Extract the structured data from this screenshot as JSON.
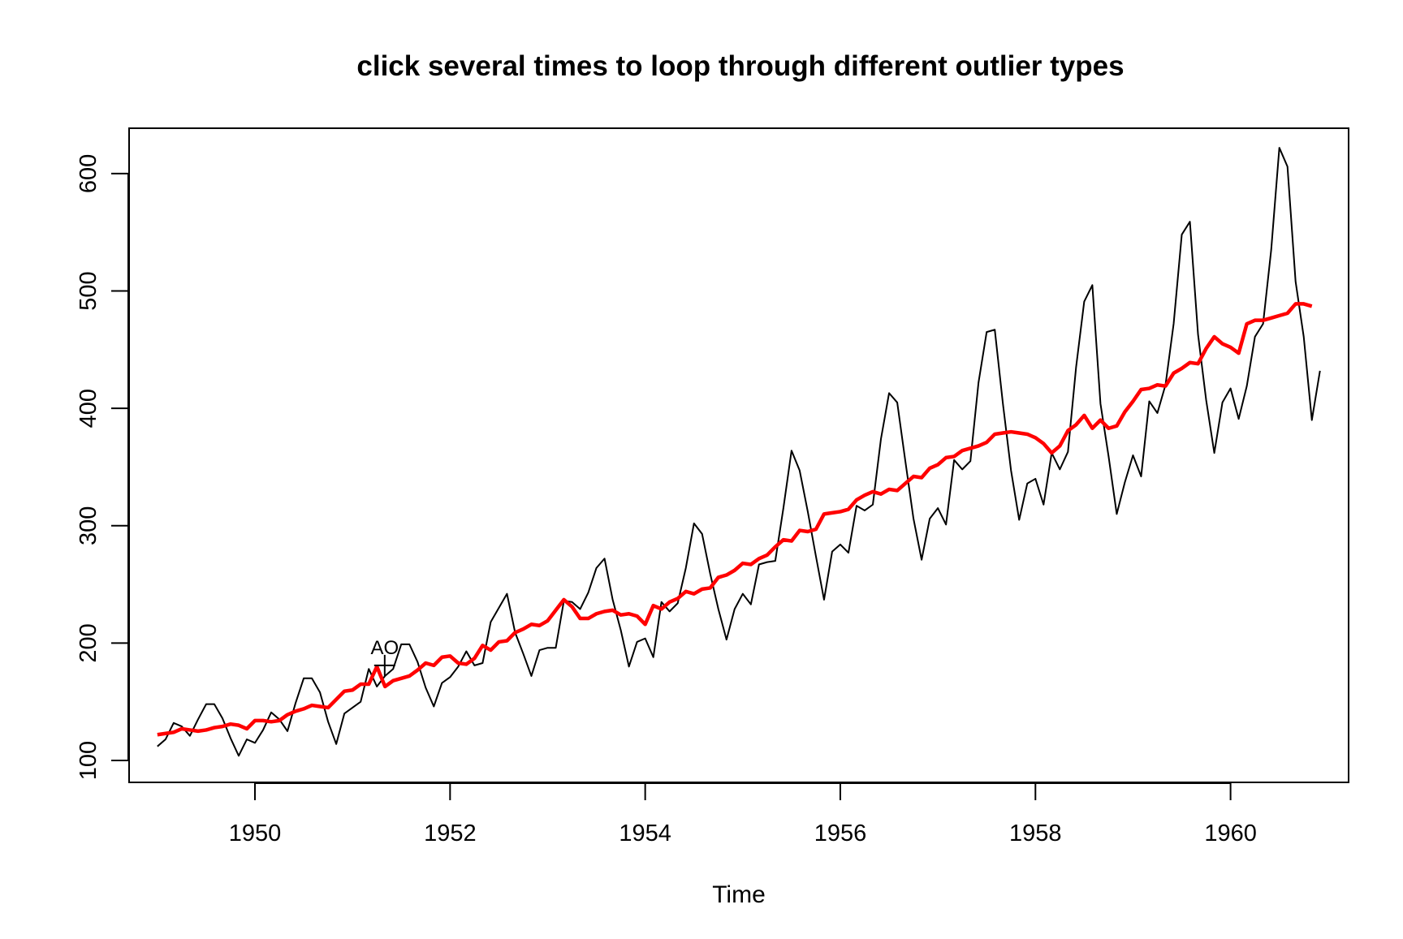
{
  "chart_data": {
    "type": "line",
    "title": "click several times to loop through different outlier types",
    "xlabel": "Time",
    "ylabel": "",
    "xlim": [
      1948.71,
      1961.21
    ],
    "ylim": [
      81.36,
      638.64
    ],
    "x_ticks": [
      1950,
      1952,
      1954,
      1956,
      1958,
      1960
    ],
    "y_ticks": [
      100,
      200,
      300,
      400,
      500,
      600
    ],
    "grid": false,
    "legend": "none",
    "x_start": 1949,
    "x_step": 0.0833333,
    "series": [
      {
        "color": "#000000",
        "values": [
          112,
          118,
          132,
          129,
          121,
          135,
          148,
          148,
          136,
          119,
          104,
          118,
          115,
          126,
          141,
          135,
          125,
          149,
          170,
          170,
          158,
          133,
          114,
          140,
          145,
          150,
          178,
          163,
          172,
          178,
          199,
          199,
          184,
          162,
          146,
          166,
          171,
          180,
          193,
          181,
          183,
          218,
          230,
          242,
          209,
          191,
          172,
          194,
          196,
          196,
          236,
          235,
          229,
          243,
          264,
          272,
          237,
          211,
          180,
          201,
          204,
          188,
          235,
          227,
          234,
          264,
          302,
          293,
          259,
          229,
          203,
          229,
          242,
          233,
          267,
          269,
          270,
          315,
          364,
          347,
          312,
          274,
          237,
          278,
          284,
          277,
          317,
          313,
          318,
          374,
          413,
          405,
          355,
          306,
          271,
          306,
          315,
          301,
          356,
          348,
          355,
          422,
          465,
          467,
          404,
          347,
          305,
          336,
          340,
          318,
          362,
          348,
          363,
          435,
          491,
          505,
          404,
          359,
          310,
          337,
          360,
          342,
          406,
          396,
          420,
          472,
          548,
          559,
          463,
          407,
          362,
          405,
          417,
          391,
          419,
          461,
          472,
          535,
          622,
          606,
          508,
          461,
          390,
          432
        ]
      },
      {
        "color": "#ff0000",
        "values": [
          122,
          123,
          124,
          127,
          126,
          125,
          126,
          128,
          129,
          131,
          130,
          127,
          134,
          134,
          133,
          134,
          139,
          142,
          144,
          147,
          146,
          145,
          152,
          159,
          160,
          165,
          165,
          180,
          163,
          168,
          170,
          172,
          177,
          183,
          181,
          188,
          189,
          183,
          182,
          187,
          198,
          194,
          201,
          202,
          209,
          212,
          216,
          215,
          219,
          228,
          237,
          231,
          221,
          221,
          225,
          227,
          228,
          224,
          225,
          223,
          216,
          232,
          229,
          235,
          238,
          244,
          242,
          246,
          247,
          256,
          258,
          262,
          268,
          267,
          272,
          275,
          282,
          288,
          287,
          296,
          295,
          297,
          310,
          311,
          312,
          314,
          322,
          326,
          329,
          327,
          331,
          330,
          336,
          342,
          341,
          349,
          352,
          358,
          359,
          364,
          366,
          368,
          371,
          378,
          379,
          380,
          379,
          378,
          375,
          370,
          362,
          368,
          381,
          386,
          394,
          383,
          390,
          383,
          385,
          397,
          406,
          416,
          417,
          420,
          419,
          430,
          434,
          439,
          438,
          451,
          461,
          455,
          452,
          447,
          472,
          475,
          475,
          477,
          479,
          481,
          489,
          489,
          487
        ]
      }
    ],
    "annotations": [
      {
        "text": "AO",
        "x": 1951.33,
        "y": 181,
        "marker": "+"
      }
    ]
  }
}
